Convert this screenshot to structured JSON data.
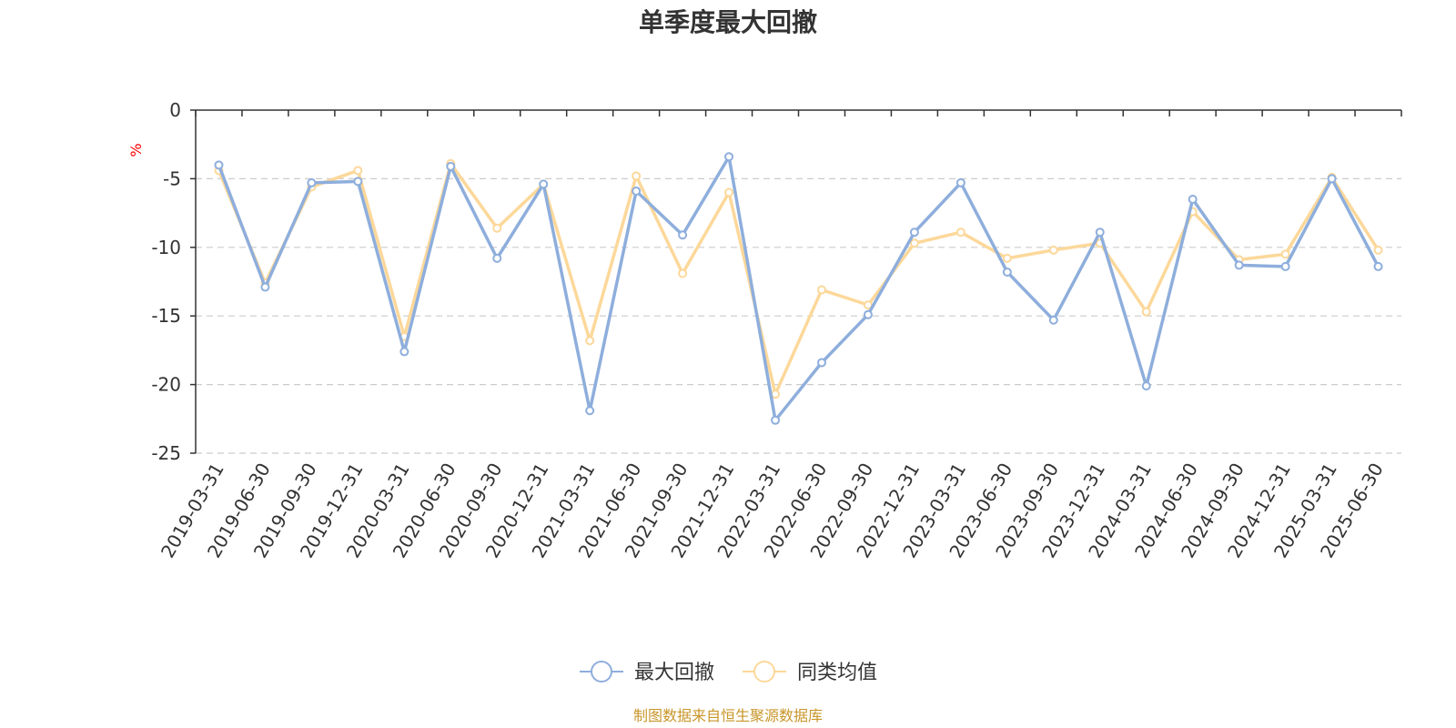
{
  "colors": {
    "series1": "#8eaedc",
    "series2": "#fcd89a",
    "axis": "#333333",
    "grid": "#cccccc",
    "unit": "#ff0000",
    "source": "#c8962a"
  },
  "chart_data": {
    "type": "line",
    "title": "单季度最大回撤",
    "ylabel": "%",
    "ylim": [
      -25,
      0
    ],
    "yticks": [
      0,
      -5,
      -10,
      -15,
      -20,
      -25
    ],
    "grid": "horizontal dashed",
    "legend_position": "bottom-center",
    "categories": [
      "2019-03-31",
      "2019-06-30",
      "2019-09-30",
      "2019-12-31",
      "2020-03-31",
      "2020-06-30",
      "2020-09-30",
      "2020-12-31",
      "2021-03-31",
      "2021-06-30",
      "2021-09-30",
      "2021-12-31",
      "2022-03-31",
      "2022-06-30",
      "2022-09-30",
      "2022-12-31",
      "2023-03-31",
      "2023-06-30",
      "2023-09-30",
      "2023-12-31",
      "2024-03-31",
      "2024-06-30",
      "2024-09-30",
      "2024-12-31",
      "2025-03-31",
      "2025-06-30"
    ],
    "series": [
      {
        "name": "最大回撤",
        "values": [
          -4.0,
          -12.9,
          -5.3,
          -5.2,
          -17.6,
          -4.1,
          -10.8,
          -5.4,
          -21.9,
          -5.9,
          -9.1,
          -3.4,
          -22.6,
          -18.4,
          -14.9,
          -8.9,
          -5.3,
          -11.8,
          -15.3,
          -8.9,
          -20.1,
          -6.5,
          -11.3,
          -11.4,
          -5.0,
          -11.4
        ]
      },
      {
        "name": "同类均值",
        "values": [
          -4.4,
          -12.6,
          -5.6,
          -4.4,
          -16.5,
          -3.9,
          -8.6,
          -5.4,
          -16.8,
          -4.8,
          -11.9,
          -6.0,
          -20.7,
          -13.1,
          -14.2,
          -9.7,
          -8.9,
          -10.8,
          -10.2,
          -9.7,
          -14.7,
          -7.4,
          -10.9,
          -10.5,
          -4.9,
          -10.2
        ]
      }
    ]
  },
  "source_note": "制图数据来自恒生聚源数据库"
}
